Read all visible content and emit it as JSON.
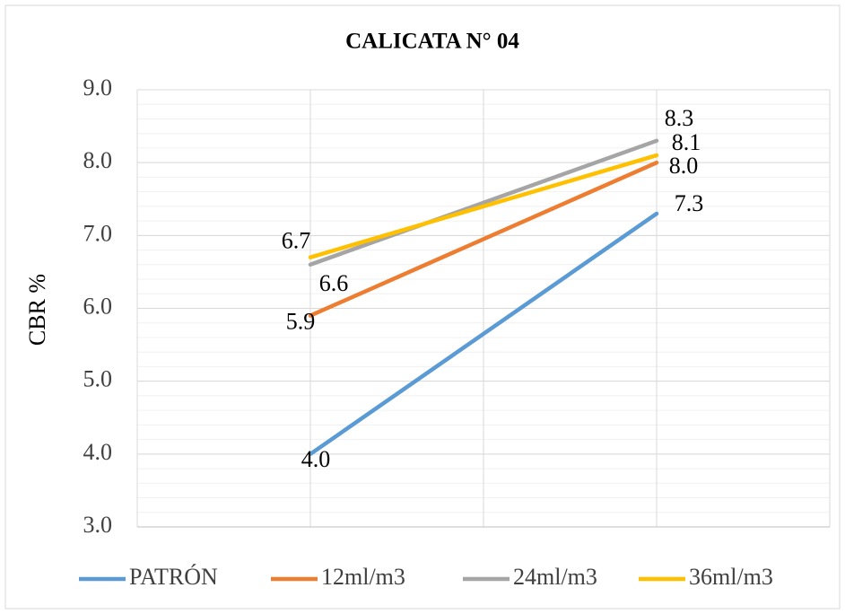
{
  "chart_data": {
    "type": "line",
    "title": "CALICATA N° 04",
    "ylabel": "CBR %",
    "x": [
      1,
      3
    ],
    "xlim": [
      0,
      4
    ],
    "xticks": [
      0,
      1,
      2,
      3,
      4
    ],
    "ylim": [
      3,
      9
    ],
    "yticks": [
      {
        "value": 3,
        "label": "3.0"
      },
      {
        "value": 4,
        "label": "4.0"
      },
      {
        "value": 5,
        "label": "5.0"
      },
      {
        "value": 6,
        "label": "6.0"
      },
      {
        "value": 7,
        "label": "7.0"
      },
      {
        "value": 8,
        "label": "8.0"
      },
      {
        "value": 9,
        "label": "9.0"
      }
    ],
    "grid": true,
    "minor_grid": 0.2,
    "legend": "bottom",
    "series": [
      {
        "name": "PATRÓN",
        "color": "#5b9bd5",
        "values": [
          4.0,
          7.3
        ],
        "value_labels": [
          "4.0",
          "7.3"
        ]
      },
      {
        "name": "12ml/m3",
        "color": "#ed7d31",
        "values": [
          5.9,
          8.0
        ],
        "value_labels": [
          "5.9",
          "8.0"
        ]
      },
      {
        "name": "24ml/m3",
        "color": "#a5a5a5",
        "values": [
          6.6,
          8.3
        ],
        "value_labels": [
          "6.6",
          "8.3"
        ]
      },
      {
        "name": "36ml/m3",
        "color": "#ffc000",
        "values": [
          6.7,
          8.1
        ],
        "value_labels": [
          "6.7",
          "8.1"
        ]
      }
    ]
  }
}
